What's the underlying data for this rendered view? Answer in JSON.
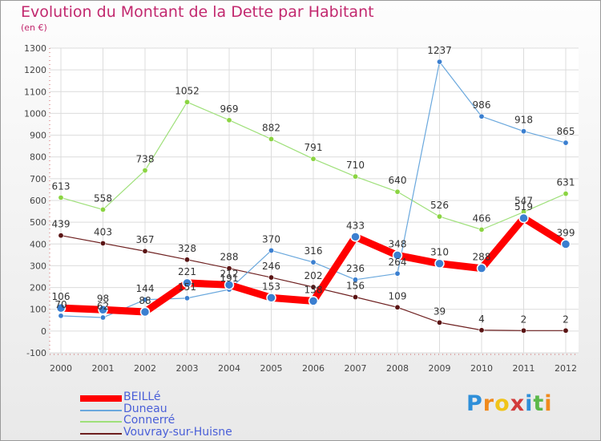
{
  "title": "Evolution du Montant de la Dette par Habitant",
  "unit": "(en €)",
  "brand": {
    "letters": [
      "P",
      "r",
      "o",
      "x",
      "i",
      "t",
      "i"
    ],
    "colors": [
      "#2f8fd9",
      "#f08a1c",
      "#f0c419",
      "#d23b3b",
      "#2f8fd9",
      "#5bb84a",
      "#f08a1c"
    ]
  },
  "chart_data": {
    "type": "line",
    "categories": [
      "2000",
      "2001",
      "2002",
      "2003",
      "2004",
      "2005",
      "2006",
      "2007",
      "2008",
      "2009",
      "2010",
      "2011",
      "2012"
    ],
    "ylim": [
      -100,
      1300
    ],
    "yticks": [
      "-100",
      "0",
      "100",
      "200",
      "300",
      "400",
      "500",
      "600",
      "700",
      "800",
      "900",
      "1000",
      "1100",
      "1200",
      "1300"
    ],
    "grid": true,
    "legend_position": "bottom-left",
    "series": [
      {
        "name": "BEILLé",
        "color": "#ff0000",
        "width": 9,
        "point_color": "#3b7fd0",
        "values": [
          106,
          98,
          88,
          221,
          212,
          153,
          138,
          433,
          348,
          310,
          288,
          519,
          399
        ],
        "labels": [
          "106",
          "98",
          "88",
          "221",
          "212",
          "153",
          "138",
          "433",
          "348",
          "310",
          "288",
          "519",
          "399"
        ]
      },
      {
        "name": "Duneau",
        "color": "#6aa8dd",
        "width": 1.2,
        "point_color": "#3b7fd0",
        "values": [
          70,
          62,
          144,
          151,
          191,
          370,
          316,
          236,
          264,
          1237,
          986,
          918,
          865
        ],
        "labels": [
          "70",
          "62",
          "144",
          "151",
          "191",
          "370",
          "316",
          "236",
          "264",
          "1237",
          "986",
          "918",
          "865"
        ]
      },
      {
        "name": "Connerré",
        "color": "#9fe07a",
        "width": 1.2,
        "point_color": "#8bd442",
        "values": [
          613,
          558,
          738,
          1052,
          969,
          882,
          791,
          710,
          640,
          526,
          466,
          547,
          631
        ],
        "labels": [
          "613",
          "558",
          "738",
          "1052",
          "969",
          "882",
          "791",
          "710",
          "640",
          "526",
          "466",
          "547",
          "631"
        ]
      },
      {
        "name": "Vouvray-sur-Huisne",
        "color": "#6e2020",
        "width": 1.2,
        "point_color": "#5a1414",
        "values": [
          439,
          403,
          367,
          328,
          288,
          246,
          202,
          156,
          109,
          39,
          4,
          2,
          2
        ],
        "labels": [
          "439",
          "403",
          "367",
          "328",
          "288",
          "246",
          "202",
          "156",
          "109",
          "39",
          "4",
          "2",
          "2"
        ]
      }
    ]
  }
}
